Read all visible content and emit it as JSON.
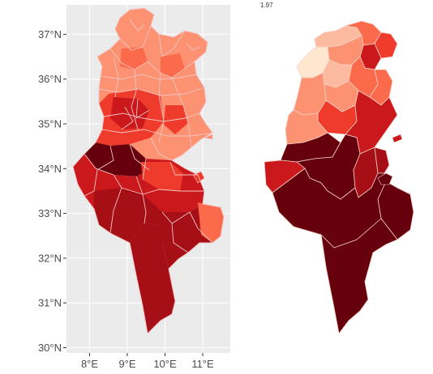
{
  "left_map": {
    "panel_background": "#ebebeb",
    "grid_color": "#ffffff",
    "border_color": "#f3c4c4",
    "y_ticks": [
      {
        "label": "37°N",
        "lat": 37
      },
      {
        "label": "36°N",
        "lat": 36
      },
      {
        "label": "35°N",
        "lat": 35
      },
      {
        "label": "34°N",
        "lat": 34
      },
      {
        "label": "33°N",
        "lat": 33
      },
      {
        "label": "32°N",
        "lat": 32
      },
      {
        "label": "31°N",
        "lat": 31
      },
      {
        "label": "30°N",
        "lat": 30
      }
    ],
    "x_ticks": [
      {
        "label": "8°E",
        "lon": 8
      },
      {
        "label": "9°E",
        "lon": 9
      },
      {
        "label": "10°E",
        "lon": 10
      },
      {
        "label": "11°E",
        "lon": 11
      }
    ]
  },
  "right_map": {
    "corner_label": "1.97",
    "border_color": "#f6d0c4"
  },
  "palette": {
    "lightest": "#fee6cf",
    "light": "#fcbba1",
    "salmon": "#fc9272",
    "red_light": "#fb6a4a",
    "red": "#ef3b2c",
    "red_dark": "#cb181d",
    "dark": "#a50f15",
    "darkest": "#67000d"
  }
}
